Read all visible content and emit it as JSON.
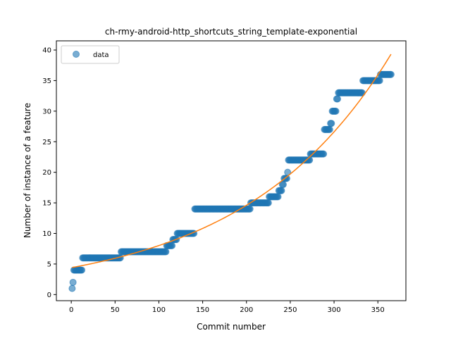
{
  "chart_data": {
    "type": "scatter",
    "title": "ch-rmy-android-http_shortcuts_string_template-exponential",
    "xlabel": "Commit number",
    "ylabel": "Number of instance of a feature",
    "xlim": [
      -17,
      382
    ],
    "ylim": [
      -1,
      41.5
    ],
    "xticks": [
      0,
      50,
      100,
      150,
      200,
      250,
      300,
      350
    ],
    "yticks": [
      0,
      5,
      10,
      15,
      20,
      25,
      30,
      35,
      40
    ],
    "grid": false,
    "legend": {
      "placement": "top-left",
      "entries": [
        "data"
      ]
    },
    "colors": {
      "data": "#1f77b4",
      "fit": "#ff7f0e"
    },
    "series": [
      {
        "name": "data",
        "kind": "scatter",
        "segments": [
          {
            "x_start": 1,
            "x_end": 1,
            "y": 1
          },
          {
            "x_start": 2,
            "x_end": 2,
            "y": 2
          },
          {
            "x_start": 3,
            "x_end": 12,
            "y": 4
          },
          {
            "x_start": 13,
            "x_end": 56,
            "y": 6
          },
          {
            "x_start": 57,
            "x_end": 108,
            "y": 7
          },
          {
            "x_start": 109,
            "x_end": 115,
            "y": 8
          },
          {
            "x_start": 116,
            "x_end": 120,
            "y": 9
          },
          {
            "x_start": 121,
            "x_end": 140,
            "y": 10
          },
          {
            "x_start": 141,
            "x_end": 204,
            "y": 14
          },
          {
            "x_start": 205,
            "x_end": 225,
            "y": 15
          },
          {
            "x_start": 226,
            "x_end": 236,
            "y": 16
          },
          {
            "x_start": 237,
            "x_end": 240,
            "y": 17
          },
          {
            "x_start": 241,
            "x_end": 242,
            "y": 18
          },
          {
            "x_start": 243,
            "x_end": 246,
            "y": 19
          },
          {
            "x_start": 247,
            "x_end": 247,
            "y": 20
          },
          {
            "x_start": 248,
            "x_end": 272,
            "y": 22
          },
          {
            "x_start": 273,
            "x_end": 288,
            "y": 23
          },
          {
            "x_start": 289,
            "x_end": 295,
            "y": 27
          },
          {
            "x_start": 296,
            "x_end": 297,
            "y": 28
          },
          {
            "x_start": 298,
            "x_end": 302,
            "y": 30
          },
          {
            "x_start": 303,
            "x_end": 304,
            "y": 32
          },
          {
            "x_start": 305,
            "x_end": 332,
            "y": 33
          },
          {
            "x_start": 333,
            "x_end": 352,
            "y": 35
          },
          {
            "x_start": 353,
            "x_end": 365,
            "y": 36
          }
        ]
      },
      {
        "kind": "line",
        "model": "exponential",
        "a": 4.4,
        "b": 0.006,
        "x_range": [
          1,
          365
        ]
      }
    ]
  }
}
